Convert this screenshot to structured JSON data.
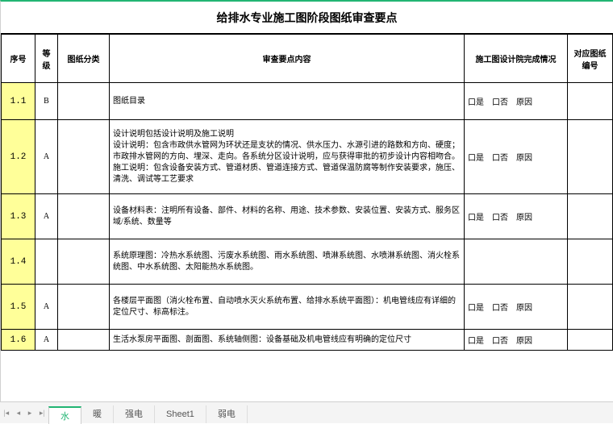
{
  "title": "给排水专业施工图阶段图纸审查要点",
  "headers": {
    "num": "序号",
    "grade": "等级",
    "category": "图纸分类",
    "content": "审查要点内容",
    "status": "施工图设计院完成情况",
    "ref": "对应图纸编号"
  },
  "status_template": "口是　口否　原因",
  "rows": [
    {
      "num": "1.1",
      "grade": "B",
      "cat": "",
      "content": "图纸目录",
      "status": true,
      "cls": "r11"
    },
    {
      "num": "1.2",
      "grade": "A",
      "cat": "",
      "content": "设计说明包括设计说明及施工说明\n设计说明：包含市政供水管网为环状还是支状的情况、供水压力、水源引进的路数和方向、硬度；市政排水管网的方向、埋深、走向。各系统分区设计说明，应与获得审批的初步设计内容相吻合。\n施工说明：包含设备安装方式、管道材质、管道连接方式、管道保温防腐等制作安装要求，施压、清洗、调试等工艺要求",
      "status": true,
      "cls": "r12"
    },
    {
      "num": "1.3",
      "grade": "A",
      "cat": "",
      "content": "设备材料表：注明所有设备、部件、材料的名称、用途、技术参数、安装位置、安装方式、服务区域/系统、数量等",
      "status": true,
      "cls": "r13"
    },
    {
      "num": "1.4",
      "grade": "",
      "cat": "",
      "content": "系统原理图：冷热水系统图、污废水系统图、雨水系统图、喷淋系统图、水喷淋系统图、消火栓系统图、中水系统图、太阳能热水系统图。",
      "status": false,
      "cls": "r14"
    },
    {
      "num": "1.5",
      "grade": "A",
      "cat": "",
      "content": "各楼层平面图（消火栓布置、自动喷水灭火系统布置、给排水系统平面图）：机电管线应有详细的定位尺寸、标高标注。",
      "status": true,
      "cls": "r15"
    },
    {
      "num": "1.6",
      "grade": "A",
      "cat": "",
      "content": "生活水泵房平面图、剖面图、系统轴侧图：设备基础及机电管线应有明确的定位尺寸",
      "status": true,
      "cls": "r16"
    }
  ],
  "tabs": {
    "items": [
      "水",
      "暖",
      "强电",
      "Sheet1",
      "弱电"
    ],
    "active": 0
  },
  "colors": {
    "highlight": "#ffff99",
    "accent": "#22b573",
    "border": "#000000",
    "tab_bg": "#f4f4f4"
  }
}
